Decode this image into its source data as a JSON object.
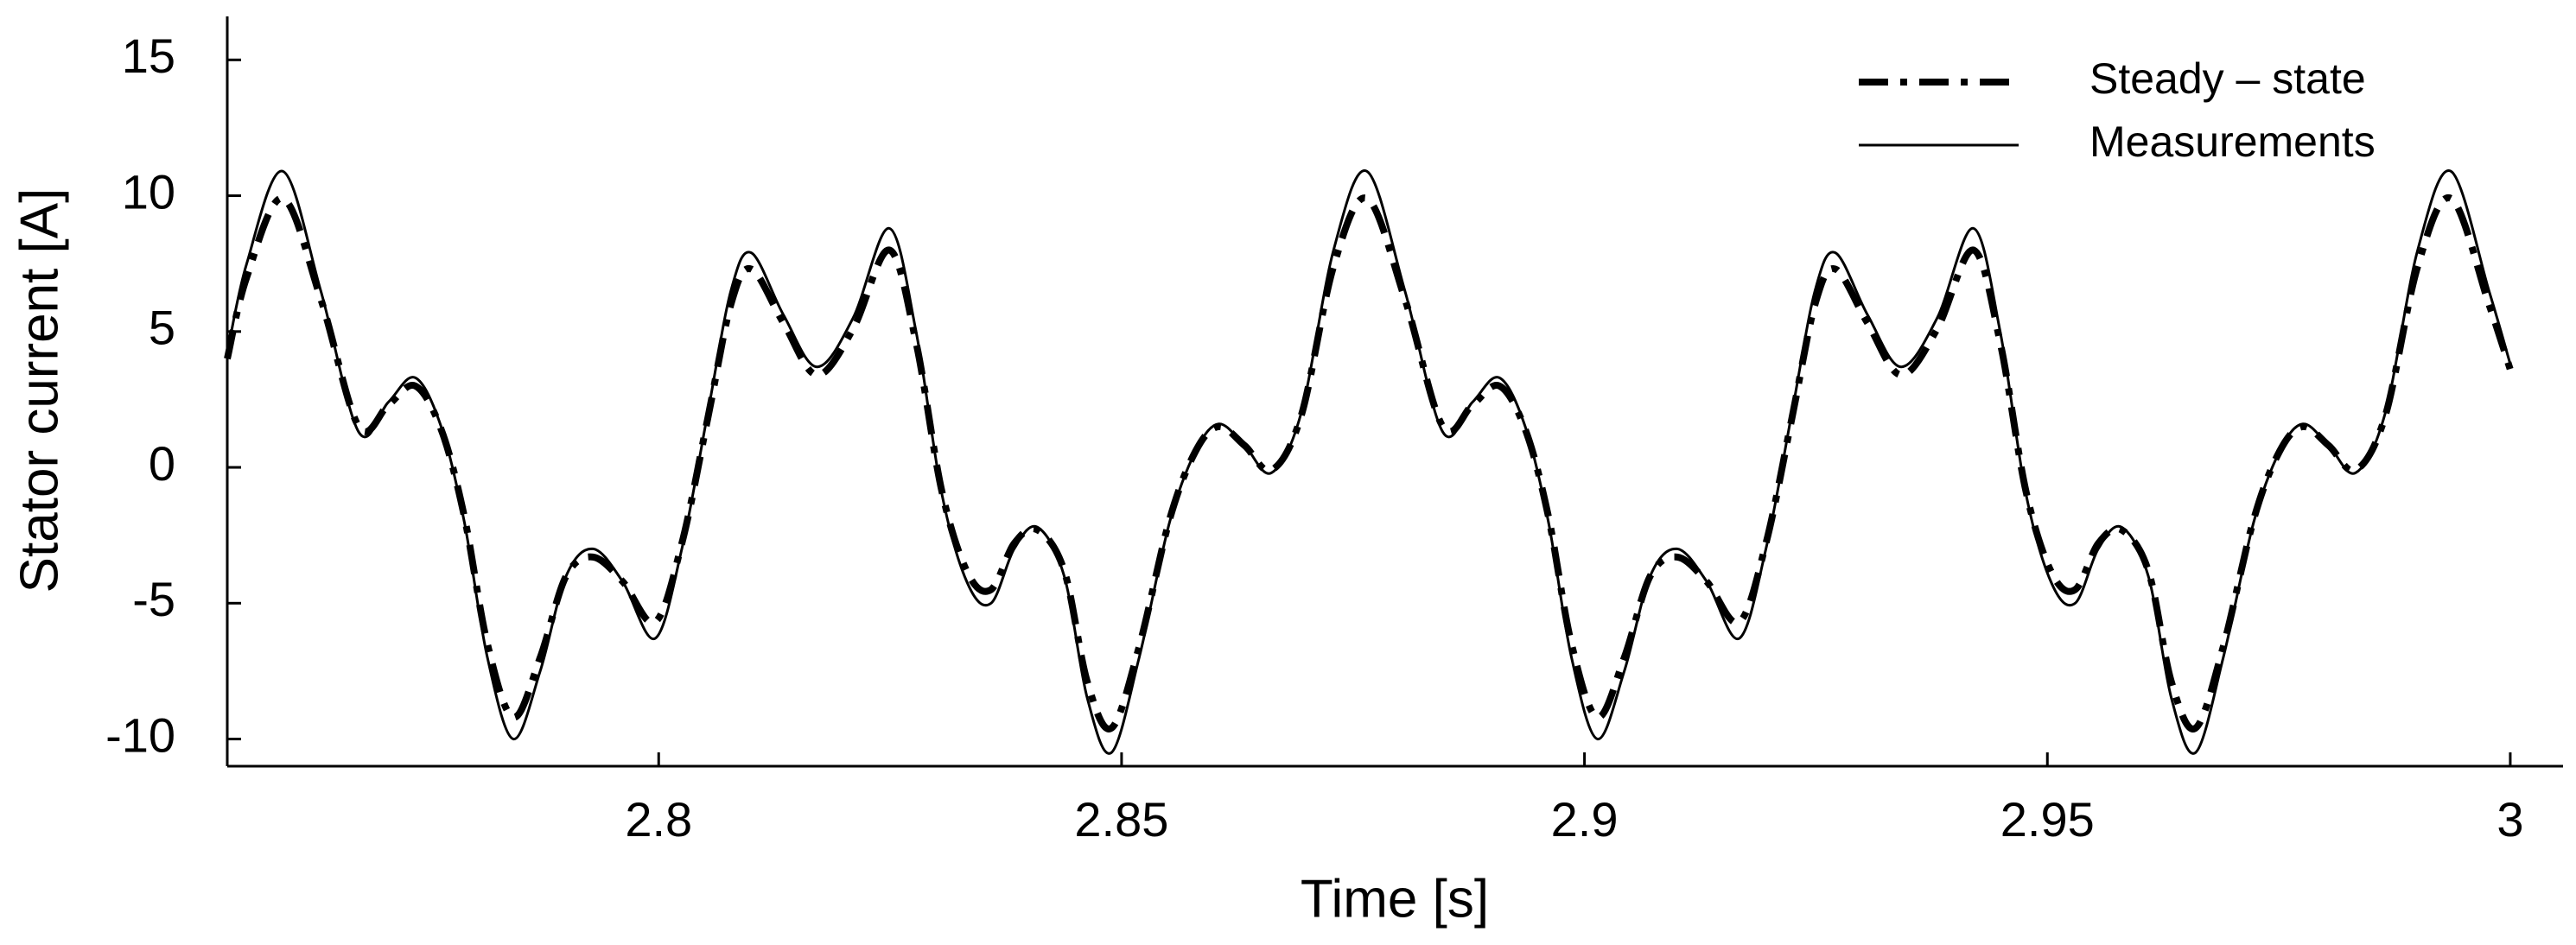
{
  "chart_data": {
    "type": "line",
    "x_label": "Time [s]",
    "y_label": "Stator current [A]",
    "xlim": [
      2.7534,
      3.0057
    ],
    "ylim": [
      -11,
      16.6
    ],
    "xticks": [
      2.8,
      2.85,
      2.9,
      2.95,
      3
    ],
    "yticks": [
      -10,
      -5,
      0,
      5,
      10,
      15
    ],
    "grid": false,
    "legend": "upper right",
    "x": [
      2.7534,
      2.7555,
      2.7594,
      2.7635,
      2.7676,
      2.7708,
      2.7737,
      2.7765,
      2.779,
      2.7815,
      2.7843,
      2.7872,
      2.79,
      2.7929,
      2.7961,
      2.7996,
      2.8025,
      2.8053,
      2.8078,
      2.81,
      2.8135,
      2.8171,
      2.821,
      2.8249,
      2.8278,
      2.8306,
      2.8334,
      2.8359,
      2.8384,
      2.8409,
      2.8438,
      2.8463,
      2.8489,
      2.8519,
      2.8552,
      2.858,
      2.8605,
      2.8633,
      2.8662,
      2.8694,
      2.8729,
      2.8765,
      2.8806,
      2.8847,
      2.8879,
      2.8908,
      2.8936,
      2.8961,
      2.8986,
      2.9014,
      2.9043,
      2.9071,
      2.91,
      2.9132,
      2.9167,
      2.9196,
      2.9224,
      2.9249,
      2.9271,
      2.9306,
      2.9342,
      2.9381,
      2.942,
      2.9449,
      2.9477,
      2.9505,
      2.953,
      2.9555,
      2.958,
      2.9609,
      2.9634,
      2.966,
      2.969,
      2.9723,
      2.9751,
      2.9776,
      2.9804,
      2.9833,
      2.9865,
      2.99,
      2.9936,
      2.9977,
      3
    ],
    "series": [
      {
        "name": "Steady – state",
        "color": "#000000",
        "dash": "dashdot",
        "width": 8,
        "values": [
          4.0,
          7.0,
          9.9,
          6.2,
          1.5,
          2.3,
          3.0,
          1.4,
          -1.8,
          -6.5,
          -9.2,
          -7.0,
          -4.0,
          -3.3,
          -4.2,
          -5.7,
          -2.8,
          1.8,
          6.0,
          7.3,
          5.3,
          3.4,
          5.1,
          8.0,
          4.6,
          -0.9,
          -3.9,
          -4.5,
          -2.8,
          -2.3,
          -3.8,
          -7.9,
          -9.6,
          -6.6,
          -1.9,
          0.6,
          1.5,
          0.8,
          -0.1,
          1.9,
          7.4,
          9.9,
          6.2,
          1.5,
          2.3,
          3.0,
          1.4,
          -1.8,
          -6.5,
          -9.2,
          -7.0,
          -4.0,
          -3.3,
          -4.2,
          -5.7,
          -2.8,
          1.8,
          6.0,
          7.3,
          5.3,
          3.4,
          5.1,
          8.0,
          4.6,
          -0.9,
          -3.9,
          -4.5,
          -2.8,
          -2.3,
          -3.8,
          -7.9,
          -9.6,
          -6.6,
          -1.9,
          0.6,
          1.5,
          0.8,
          -0.1,
          1.9,
          7.4,
          9.9,
          6.0,
          3.6
        ]
      },
      {
        "name": "Measurements",
        "color": "#000000",
        "dash": "solid",
        "width": 3,
        "values": [
          4.2,
          7.5,
          10.9,
          6.5,
          1.3,
          2.4,
          3.3,
          1.5,
          -2.0,
          -7.0,
          -10.0,
          -7.5,
          -4.0,
          -3.0,
          -4.2,
          -6.3,
          -3.0,
          2.0,
          6.5,
          7.9,
          5.6,
          3.7,
          5.5,
          8.8,
          5.0,
          -1.0,
          -4.3,
          -5.0,
          -3.0,
          -2.2,
          -4.0,
          -8.5,
          -10.5,
          -7.0,
          -2.0,
          0.6,
          1.6,
          0.8,
          -0.2,
          2.0,
          8.0,
          10.9,
          6.5,
          1.3,
          2.4,
          3.3,
          1.5,
          -2.0,
          -7.0,
          -10.0,
          -7.5,
          -4.0,
          -3.0,
          -4.2,
          -6.3,
          -3.0,
          2.0,
          6.5,
          7.9,
          5.6,
          3.7,
          5.5,
          8.8,
          5.0,
          -1.0,
          -4.3,
          -5.0,
          -3.0,
          -2.2,
          -4.0,
          -8.5,
          -10.5,
          -7.0,
          -2.0,
          0.6,
          1.6,
          0.8,
          -0.2,
          2.0,
          8.0,
          10.9,
          6.5,
          3.8
        ]
      }
    ]
  }
}
